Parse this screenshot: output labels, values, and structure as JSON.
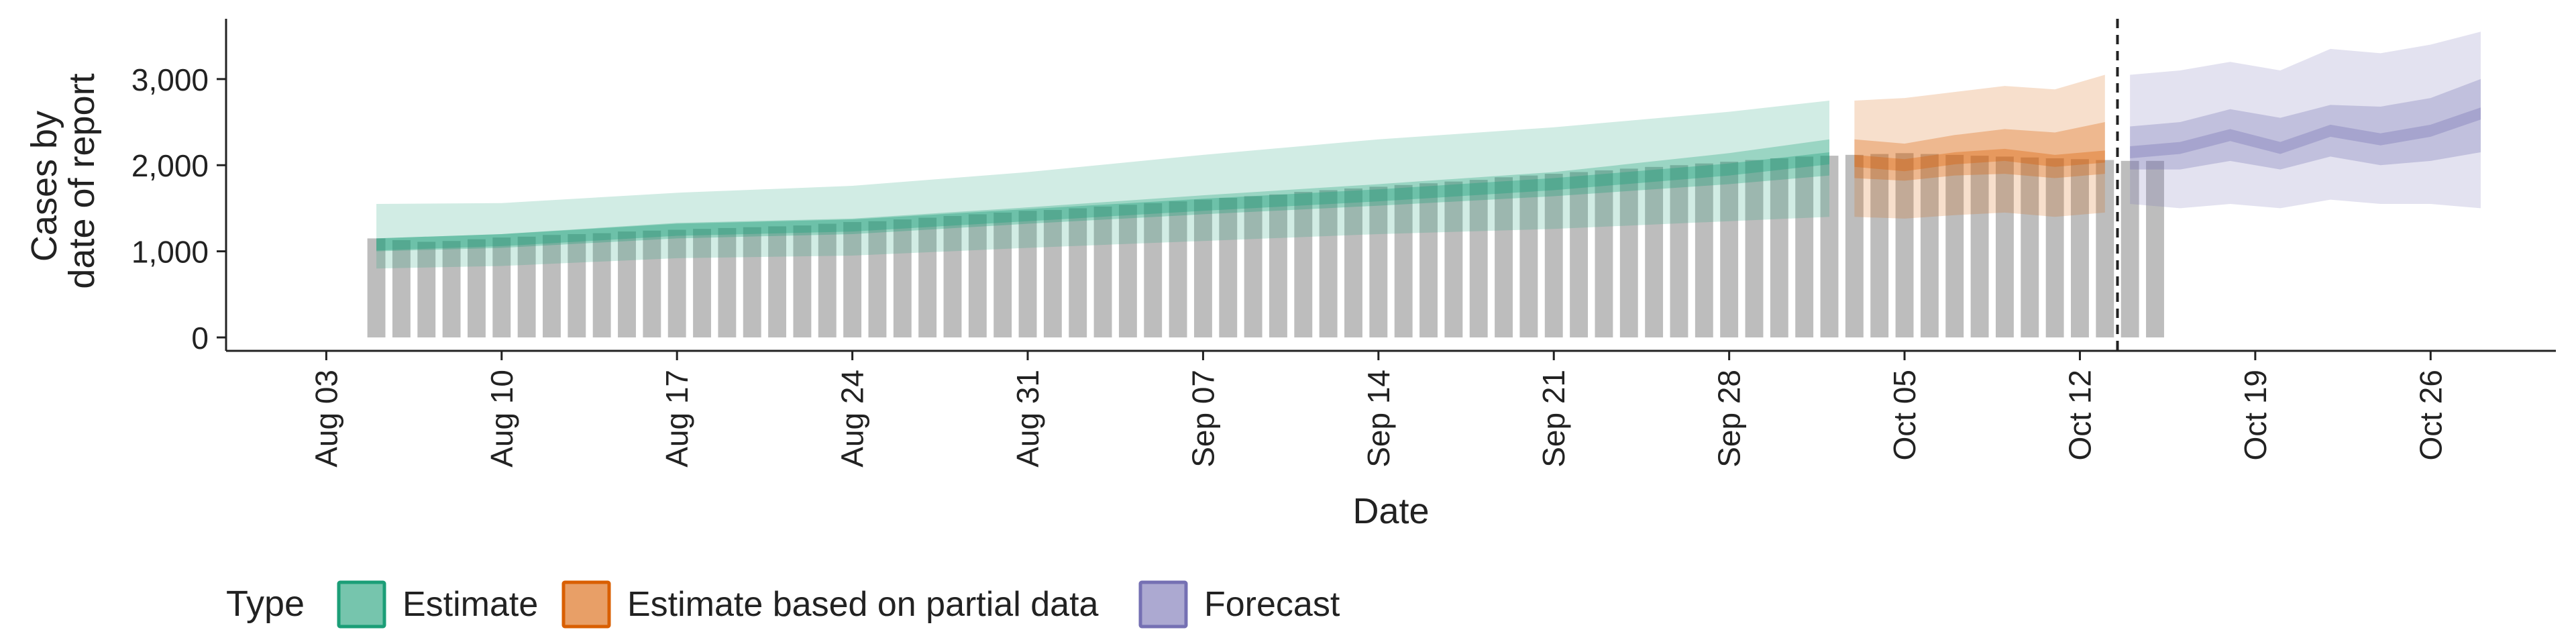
{
  "chart_data": {
    "type": "bar",
    "title": "",
    "xlabel": "Date",
    "ylabel_lines": [
      "Cases by",
      "date of report"
    ],
    "ylim": [
      0,
      3700
    ],
    "y_ticks": [
      0,
      1000,
      2000,
      3000
    ],
    "y_tick_labels": [
      "0",
      "1,000",
      "2,000",
      "3,000"
    ],
    "x_range": [
      "2020-07-30",
      "2020-10-31"
    ],
    "x_ticks": [
      "2020-08-03",
      "2020-08-10",
      "2020-08-17",
      "2020-08-24",
      "2020-08-31",
      "2020-09-07",
      "2020-09-14",
      "2020-09-21",
      "2020-09-28",
      "2020-10-05",
      "2020-10-12",
      "2020-10-19",
      "2020-10-26"
    ],
    "x_tick_labels": [
      "Aug 03",
      "Aug 10",
      "Aug 17",
      "Aug 24",
      "Aug 31",
      "Sep 07",
      "Sep 14",
      "Sep 21",
      "Sep 28",
      "Oct 05",
      "Oct 12",
      "Oct 19",
      "Oct 26"
    ],
    "forecast_start": "2020-10-14",
    "grid": false,
    "legend": {
      "title": "Type",
      "position": "bottom",
      "entries": [
        {
          "label": "Estimate",
          "color": "#1B9E77"
        },
        {
          "label": "Estimate based on partial data",
          "color": "#D95F02"
        },
        {
          "label": "Forecast",
          "color": "#7570B3"
        }
      ]
    },
    "reported_cases": {
      "color": "#bdbdbd",
      "start_date": "2020-08-05",
      "values": [
        1150,
        1130,
        1110,
        1120,
        1140,
        1160,
        1170,
        1190,
        1200,
        1210,
        1230,
        1240,
        1250,
        1260,
        1270,
        1280,
        1290,
        1300,
        1320,
        1340,
        1350,
        1370,
        1390,
        1410,
        1430,
        1450,
        1470,
        1480,
        1500,
        1520,
        1540,
        1560,
        1580,
        1600,
        1620,
        1640,
        1660,
        1690,
        1710,
        1730,
        1750,
        1770,
        1790,
        1810,
        1830,
        1860,
        1880,
        1900,
        1920,
        1940,
        1960,
        1980,
        2000,
        2020,
        2040,
        2060,
        2080,
        2100,
        2110,
        2120,
        2130,
        2140,
        2130,
        2120,
        2110,
        2100,
        2090,
        2080,
        2070,
        2060,
        2050,
        2050
      ]
    },
    "series": [
      {
        "name": "Estimate",
        "color": "#1B9E77",
        "dates": [
          "2020-08-05",
          "2020-08-10",
          "2020-08-17",
          "2020-08-24",
          "2020-08-31",
          "2020-09-07",
          "2020-09-14",
          "2020-09-21",
          "2020-09-28",
          "2020-10-02"
        ],
        "median": [
          1080,
          1130,
          1250,
          1300,
          1420,
          1540,
          1650,
          1780,
          1950,
          2080
        ],
        "ci50": [
          [
            1000,
            1150
          ],
          [
            1040,
            1200
          ],
          [
            1150,
            1330
          ],
          [
            1200,
            1380
          ],
          [
            1320,
            1510
          ],
          [
            1430,
            1650
          ],
          [
            1530,
            1780
          ],
          [
            1640,
            1920
          ],
          [
            1780,
            2140
          ],
          [
            1880,
            2300
          ]
        ],
        "ci90": [
          [
            800,
            1550
          ],
          [
            830,
            1560
          ],
          [
            920,
            1680
          ],
          [
            950,
            1760
          ],
          [
            1040,
            1920
          ],
          [
            1120,
            2120
          ],
          [
            1200,
            2300
          ],
          [
            1260,
            2440
          ],
          [
            1350,
            2620
          ],
          [
            1400,
            2750
          ]
        ]
      },
      {
        "name": "Estimate based on partial data",
        "color": "#D95F02",
        "dates": [
          "2020-10-03",
          "2020-10-05",
          "2020-10-07",
          "2020-10-09",
          "2020-10-11",
          "2020-10-13"
        ],
        "median": [
          2050,
          2000,
          2080,
          2120,
          2050,
          2100
        ],
        "ci50": [
          [
            1850,
            2300
          ],
          [
            1820,
            2250
          ],
          [
            1880,
            2350
          ],
          [
            1900,
            2420
          ],
          [
            1850,
            2380
          ],
          [
            1900,
            2500
          ]
        ],
        "ci90": [
          [
            1400,
            2750
          ],
          [
            1380,
            2780
          ],
          [
            1420,
            2850
          ],
          [
            1450,
            2920
          ],
          [
            1400,
            2880
          ],
          [
            1450,
            3050
          ]
        ]
      },
      {
        "name": "Forecast",
        "color": "#7570B3",
        "dates": [
          "2020-10-14",
          "2020-10-16",
          "2020-10-18",
          "2020-10-20",
          "2020-10-22",
          "2020-10-24",
          "2020-10-26",
          "2020-10-28"
        ],
        "median": [
          2150,
          2200,
          2350,
          2200,
          2400,
          2300,
          2400,
          2600
        ],
        "ci50": [
          [
            1950,
            2450
          ],
          [
            1950,
            2500
          ],
          [
            2050,
            2650
          ],
          [
            1950,
            2550
          ],
          [
            2100,
            2700
          ],
          [
            2000,
            2680
          ],
          [
            2050,
            2780
          ],
          [
            2150,
            3000
          ]
        ],
        "ci90": [
          [
            1550,
            3050
          ],
          [
            1500,
            3100
          ],
          [
            1550,
            3200
          ],
          [
            1500,
            3100
          ],
          [
            1600,
            3350
          ],
          [
            1550,
            3300
          ],
          [
            1550,
            3400
          ],
          [
            1500,
            3550
          ]
        ]
      }
    ]
  }
}
